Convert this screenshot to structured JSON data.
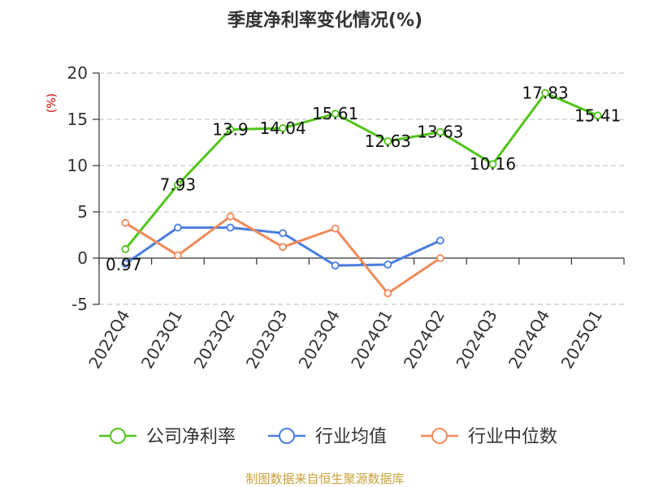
{
  "chart_data": {
    "type": "line",
    "title": "季度净利率变化情况(%)",
    "unit_label": "(%)",
    "categories": [
      "2022Q4",
      "2023Q1",
      "2023Q2",
      "2023Q3",
      "2023Q4",
      "2024Q1",
      "2024Q2",
      "2024Q3",
      "2024Q4",
      "2025Q1"
    ],
    "ylim": [
      -5,
      20
    ],
    "yticks": [
      -5,
      0,
      5,
      10,
      15,
      20
    ],
    "grid": true,
    "legend_position": "bottom",
    "series": [
      {
        "name": "公司净利率",
        "color": "#52c41a",
        "values": [
          0.97,
          7.93,
          13.9,
          14.04,
          15.61,
          12.63,
          13.63,
          10.16,
          17.83,
          15.41
        ],
        "labels": [
          "0.97",
          "7.93",
          "13.9",
          "14.04",
          "15.61",
          "12.63",
          "13.63",
          "10.16",
          "17.83",
          "15.41"
        ]
      },
      {
        "name": "行业均值",
        "color": "#4a7de0",
        "values": [
          -0.6,
          3.3,
          3.3,
          2.7,
          -0.8,
          -0.7,
          1.9,
          null,
          null,
          null
        ]
      },
      {
        "name": "行业中位数",
        "color": "#f08a5a",
        "values": [
          3.8,
          0.3,
          4.5,
          1.2,
          3.2,
          -3.8,
          0.0,
          null,
          null,
          null
        ]
      }
    ]
  },
  "footer": {
    "source": "制图数据来自恒生聚源数据库",
    "source_color": "#c8a23a"
  }
}
